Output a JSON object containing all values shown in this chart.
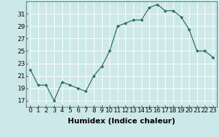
{
  "x": [
    0,
    1,
    2,
    3,
    4,
    5,
    6,
    7,
    8,
    9,
    10,
    11,
    12,
    13,
    14,
    15,
    16,
    17,
    18,
    19,
    20,
    21,
    22,
    23
  ],
  "y": [
    22,
    19.5,
    19.5,
    17,
    20,
    19.5,
    19,
    18.5,
    21,
    22.5,
    25,
    29,
    29.5,
    30,
    30,
    32,
    32.5,
    31.5,
    31.5,
    30.5,
    28.5,
    25,
    25,
    24
  ],
  "line_color": "#2e6b5e",
  "marker_color": "#2e6b5e",
  "bg_color": "#cde8e8",
  "grid_color": "#ffffff",
  "xlabel": "Humidex (Indice chaleur)",
  "xlim": [
    -0.5,
    23.5
  ],
  "ylim": [
    16,
    33
  ],
  "yticks": [
    17,
    19,
    21,
    23,
    25,
    27,
    29,
    31
  ],
  "xticks": [
    0,
    1,
    2,
    3,
    4,
    5,
    6,
    7,
    8,
    9,
    10,
    11,
    12,
    13,
    14,
    15,
    16,
    17,
    18,
    19,
    20,
    21,
    22,
    23
  ],
  "tick_fontsize": 6.5,
  "xlabel_fontsize": 8
}
